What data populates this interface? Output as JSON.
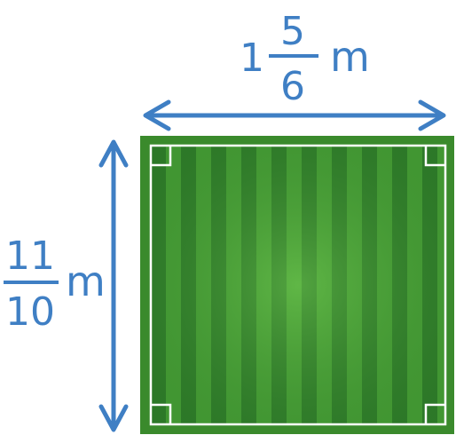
{
  "width_label": {
    "whole": "1",
    "numerator": "5",
    "denominator": "6",
    "unit": "m"
  },
  "height_label": {
    "numerator": "11",
    "denominator": "10",
    "unit": "m"
  },
  "colors": {
    "dimension": "#3f7fc4",
    "field_border": "#3a8a2c",
    "stripe_dark": "#2f7d2a",
    "stripe_light": "#4ea63a",
    "field_lines": "#ffffff"
  },
  "icons": {
    "width_arrow": "double-headed-horizontal-arrow",
    "height_arrow": "double-headed-vertical-arrow",
    "right_angle_marks": "right-angle-square-marks"
  }
}
